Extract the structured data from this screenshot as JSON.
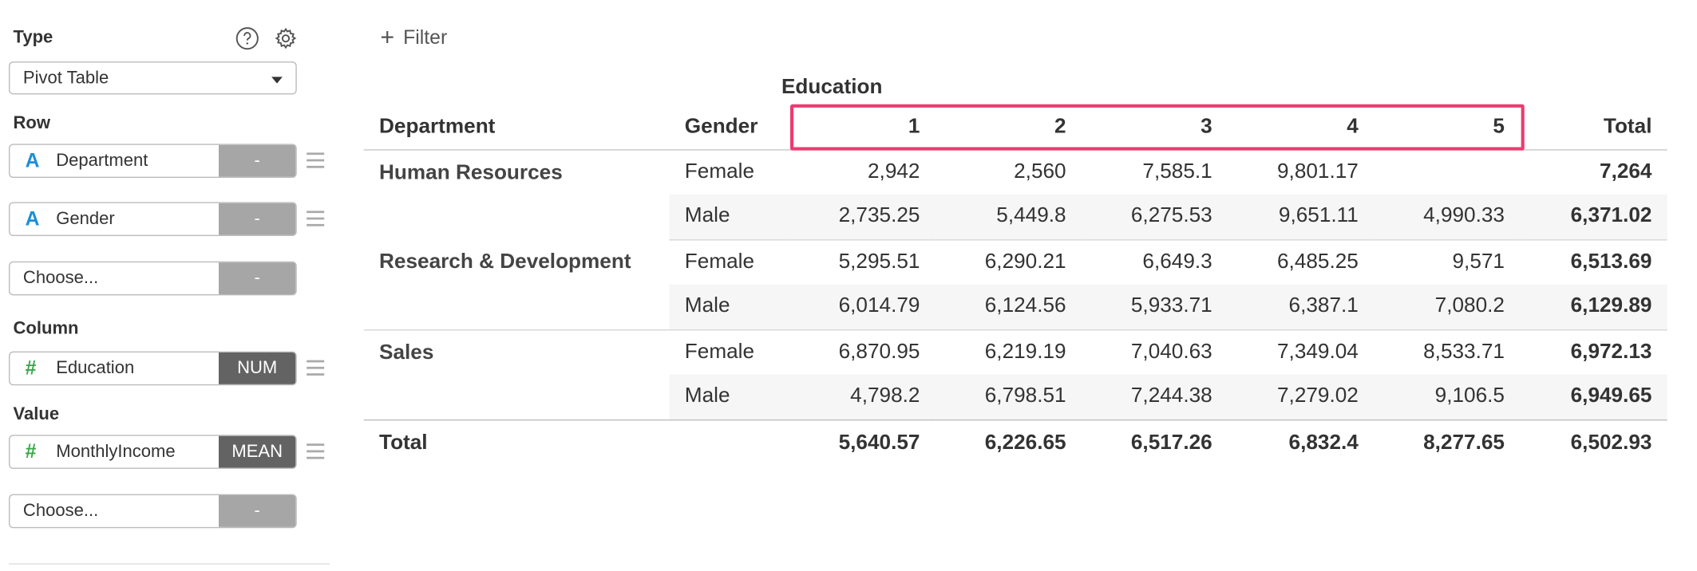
{
  "panel": {
    "type_label": "Type",
    "type_value": "Pivot Table",
    "row_label": "Row",
    "rows": [
      {
        "name": "Department",
        "kind": "str",
        "btn": "-"
      },
      {
        "name": "Gender",
        "kind": "str",
        "btn": "-"
      }
    ],
    "row_choose": "Choose...",
    "row_choose_btn": "-",
    "column_label": "Column",
    "column": {
      "name": "Education",
      "kind": "num",
      "btn": "NUM"
    },
    "value_label": "Value",
    "value": {
      "name": "MonthlyIncome",
      "kind": "num",
      "btn": "MEAN"
    },
    "value_choose": "Choose...",
    "value_choose_btn": "-",
    "icons": {
      "help": "help-circle-icon",
      "settings": "gear-icon",
      "string": "A",
      "number": "#"
    }
  },
  "main": {
    "filter_label": "Filter",
    "column_group": "Education",
    "highlight_color": "#ec3b72"
  },
  "table": {
    "headers": [
      "Department",
      "Gender",
      "1",
      "2",
      "3",
      "4",
      "5",
      "Total"
    ],
    "rows": [
      {
        "dept": "Human Resources",
        "gender": "Female",
        "values": [
          "2,942",
          "2,560",
          "7,585.1",
          "9,801.17",
          ""
        ],
        "total": "7,264"
      },
      {
        "dept": "",
        "gender": "Male",
        "values": [
          "2,735.25",
          "5,449.8",
          "6,275.53",
          "9,651.11",
          "4,990.33"
        ],
        "total": "6,371.02"
      },
      {
        "dept": "Research & Development",
        "gender": "Female",
        "values": [
          "5,295.51",
          "6,290.21",
          "6,649.3",
          "6,485.25",
          "9,571"
        ],
        "total": "6,513.69"
      },
      {
        "dept": "",
        "gender": "Male",
        "values": [
          "6,014.79",
          "6,124.56",
          "5,933.71",
          "6,387.1",
          "7,080.2"
        ],
        "total": "6,129.89"
      },
      {
        "dept": "Sales",
        "gender": "Female",
        "values": [
          "6,870.95",
          "6,219.19",
          "7,040.63",
          "7,349.04",
          "8,533.71"
        ],
        "total": "6,972.13"
      },
      {
        "dept": "",
        "gender": "Male",
        "values": [
          "4,798.2",
          "6,798.51",
          "7,244.38",
          "7,279.02",
          "9,106.5"
        ],
        "total": "6,949.65"
      }
    ],
    "total_row": {
      "label": "Total",
      "values": [
        "5,640.57",
        "6,226.65",
        "6,517.26",
        "6,832.4",
        "8,277.65"
      ],
      "total": "6,502.93"
    }
  }
}
